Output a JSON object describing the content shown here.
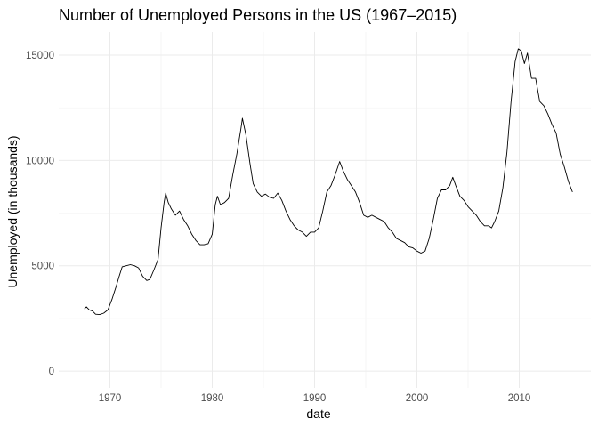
{
  "chart_data": {
    "type": "line",
    "title": "Number of Unemployed Persons in the US (1967–2015)",
    "xlabel": "date",
    "ylabel": "Unemployed (in thousands)",
    "xlim": [
      1965.0,
      2017.0
    ],
    "ylim": [
      -800,
      16100
    ],
    "x_ticks": [
      1970,
      1980,
      1990,
      2000,
      2010
    ],
    "y_ticks": [
      0,
      5000,
      10000,
      15000
    ],
    "grid": true,
    "colors": {
      "line": "#000000",
      "grid": "#ebebeb",
      "background": "#ffffff"
    },
    "series": [
      {
        "points": [
          [
            1967.5,
            2950
          ],
          [
            1967.7,
            3050
          ],
          [
            1968.0,
            2900
          ],
          [
            1968.3,
            2850
          ],
          [
            1968.6,
            2700
          ],
          [
            1969.0,
            2680
          ],
          [
            1969.4,
            2750
          ],
          [
            1969.8,
            2900
          ],
          [
            1970.2,
            3400
          ],
          [
            1970.6,
            4000
          ],
          [
            1970.9,
            4500
          ],
          [
            1971.2,
            4950
          ],
          [
            1971.6,
            5000
          ],
          [
            1972.0,
            5050
          ],
          [
            1972.4,
            5000
          ],
          [
            1972.8,
            4900
          ],
          [
            1973.2,
            4500
          ],
          [
            1973.6,
            4300
          ],
          [
            1973.9,
            4350
          ],
          [
            1974.3,
            4800
          ],
          [
            1974.7,
            5300
          ],
          [
            1975.0,
            6800
          ],
          [
            1975.3,
            8000
          ],
          [
            1975.45,
            8450
          ],
          [
            1975.7,
            8000
          ],
          [
            1976.0,
            7700
          ],
          [
            1976.4,
            7400
          ],
          [
            1976.8,
            7600
          ],
          [
            1977.2,
            7200
          ],
          [
            1977.6,
            6900
          ],
          [
            1978.0,
            6500
          ],
          [
            1978.4,
            6200
          ],
          [
            1978.8,
            6000
          ],
          [
            1979.2,
            6000
          ],
          [
            1979.6,
            6050
          ],
          [
            1980.0,
            6500
          ],
          [
            1980.3,
            7900
          ],
          [
            1980.5,
            8300
          ],
          [
            1980.8,
            7900
          ],
          [
            1981.2,
            8000
          ],
          [
            1981.6,
            8200
          ],
          [
            1982.0,
            9300
          ],
          [
            1982.4,
            10300
          ],
          [
            1982.8,
            11500
          ],
          [
            1982.95,
            12000
          ],
          [
            1983.3,
            11200
          ],
          [
            1983.7,
            9800
          ],
          [
            1984.0,
            8900
          ],
          [
            1984.4,
            8500
          ],
          [
            1984.8,
            8300
          ],
          [
            1985.2,
            8400
          ],
          [
            1985.6,
            8250
          ],
          [
            1986.0,
            8200
          ],
          [
            1986.4,
            8450
          ],
          [
            1986.8,
            8100
          ],
          [
            1987.2,
            7600
          ],
          [
            1987.6,
            7200
          ],
          [
            1988.0,
            6900
          ],
          [
            1988.4,
            6700
          ],
          [
            1988.8,
            6600
          ],
          [
            1989.2,
            6400
          ],
          [
            1989.6,
            6600
          ],
          [
            1990.0,
            6600
          ],
          [
            1990.4,
            6800
          ],
          [
            1990.8,
            7600
          ],
          [
            1991.2,
            8500
          ],
          [
            1991.6,
            8800
          ],
          [
            1992.0,
            9300
          ],
          [
            1992.45,
            9950
          ],
          [
            1992.8,
            9500
          ],
          [
            1993.2,
            9100
          ],
          [
            1993.6,
            8800
          ],
          [
            1994.0,
            8500
          ],
          [
            1994.4,
            8000
          ],
          [
            1994.8,
            7400
          ],
          [
            1995.2,
            7300
          ],
          [
            1995.6,
            7400
          ],
          [
            1996.0,
            7300
          ],
          [
            1996.4,
            7200
          ],
          [
            1996.8,
            7100
          ],
          [
            1997.2,
            6800
          ],
          [
            1997.6,
            6600
          ],
          [
            1998.0,
            6300
          ],
          [
            1998.4,
            6200
          ],
          [
            1998.8,
            6100
          ],
          [
            1999.2,
            5900
          ],
          [
            1999.6,
            5850
          ],
          [
            2000.0,
            5700
          ],
          [
            2000.4,
            5600
          ],
          [
            2000.8,
            5700
          ],
          [
            2001.2,
            6300
          ],
          [
            2001.6,
            7200
          ],
          [
            2002.0,
            8200
          ],
          [
            2002.4,
            8600
          ],
          [
            2002.8,
            8600
          ],
          [
            2003.2,
            8800
          ],
          [
            2003.5,
            9200
          ],
          [
            2003.8,
            8800
          ],
          [
            2004.2,
            8300
          ],
          [
            2004.6,
            8100
          ],
          [
            2005.0,
            7800
          ],
          [
            2005.4,
            7600
          ],
          [
            2005.8,
            7400
          ],
          [
            2006.2,
            7100
          ],
          [
            2006.6,
            6900
          ],
          [
            2007.0,
            6900
          ],
          [
            2007.3,
            6800
          ],
          [
            2007.6,
            7100
          ],
          [
            2008.0,
            7600
          ],
          [
            2008.4,
            8700
          ],
          [
            2008.8,
            10400
          ],
          [
            2009.2,
            12800
          ],
          [
            2009.6,
            14700
          ],
          [
            2009.9,
            15300
          ],
          [
            2010.2,
            15200
          ],
          [
            2010.5,
            14600
          ],
          [
            2010.8,
            15100
          ],
          [
            2011.2,
            13900
          ],
          [
            2011.6,
            13900
          ],
          [
            2012.0,
            12800
          ],
          [
            2012.4,
            12600
          ],
          [
            2012.8,
            12200
          ],
          [
            2013.2,
            11700
          ],
          [
            2013.6,
            11300
          ],
          [
            2014.0,
            10300
          ],
          [
            2014.4,
            9700
          ],
          [
            2014.8,
            9000
          ],
          [
            2015.2,
            8500
          ]
        ]
      }
    ]
  }
}
